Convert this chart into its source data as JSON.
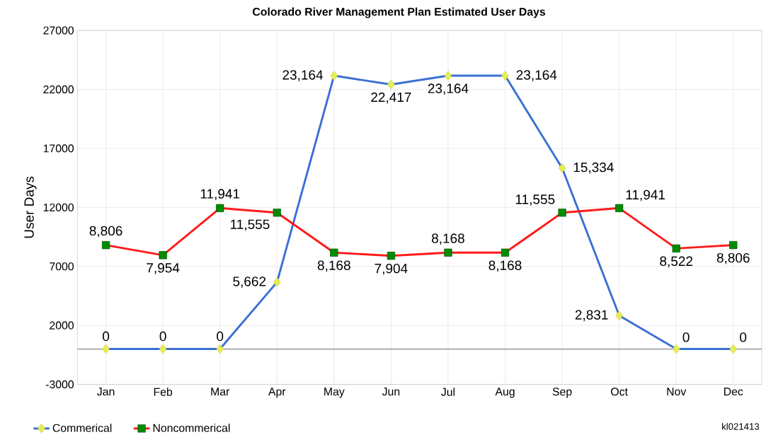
{
  "chart_data": {
    "type": "line",
    "title": "Colorado River Management Plan Estimated User Days",
    "ylabel": "User Days",
    "categories": [
      "Jan",
      "Feb",
      "Mar",
      "Apr",
      "May",
      "Jun",
      "Jul",
      "Aug",
      "Sep",
      "Oct",
      "Nov",
      "Dec"
    ],
    "series": [
      {
        "name": "Commerical",
        "color": "#3b6fd4",
        "marker": "diamond",
        "values": [
          0,
          0,
          0,
          5662,
          23164,
          22417,
          23164,
          23164,
          15334,
          2831,
          0,
          0
        ],
        "value_labels": [
          "0",
          "0",
          "0",
          "5,662",
          "23,164",
          "22,417",
          "23,164",
          "23,164",
          "15,334",
          "2,831",
          "0",
          "0"
        ]
      },
      {
        "name": "Noncommerical",
        "color": "#ff1a1a",
        "marker": "square",
        "values": [
          8806,
          7954,
          11941,
          11555,
          8168,
          7904,
          8168,
          8168,
          11555,
          11941,
          8522,
          8806
        ],
        "value_labels": [
          "8,806",
          "7,954",
          "11,941",
          "11,555",
          "8,168",
          "7,904",
          "8,168",
          "8,168",
          "11,555",
          "11,941",
          "8,522",
          "8,806"
        ]
      }
    ],
    "ylim": [
      -3000,
      27000
    ],
    "yticks": [
      -3000,
      2000,
      7000,
      12000,
      17000,
      22000,
      27000
    ],
    "grid": true,
    "legend": "bottom left",
    "line_style": "solid",
    "ref_lines": [
      {
        "axis": "y",
        "value": 0,
        "color": "#888888"
      }
    ],
    "annotations": [
      "kl021413"
    ]
  }
}
